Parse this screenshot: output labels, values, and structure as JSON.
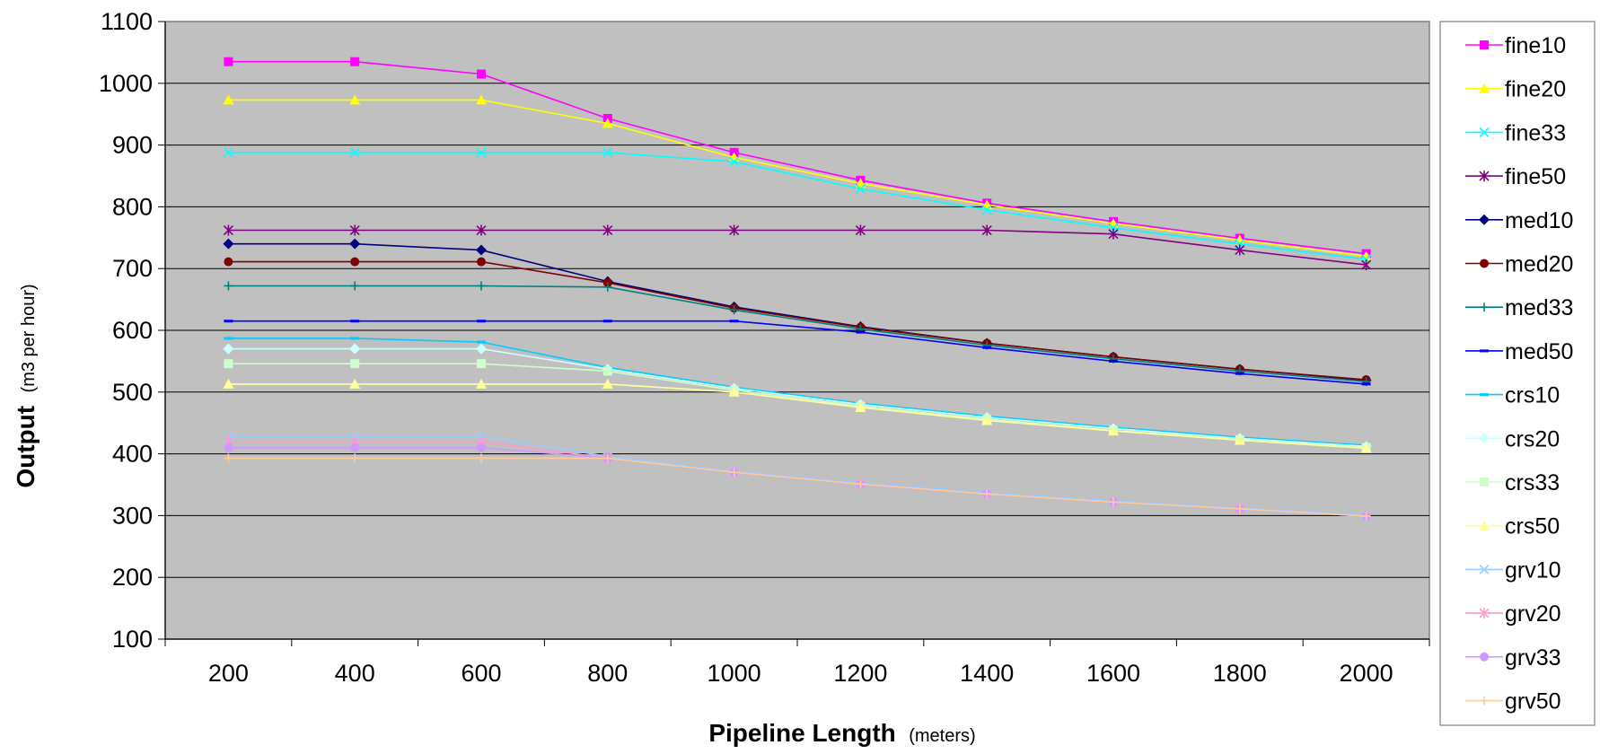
{
  "chart_data": {
    "type": "line",
    "xlabel": "Pipeline Length",
    "xlabel_unit": "(meters)",
    "ylabel": "Output",
    "ylabel_unit": "(m3 per hour)",
    "ylim": [
      100,
      1100
    ],
    "y_ticks": [
      100,
      200,
      300,
      400,
      500,
      600,
      700,
      800,
      900,
      1000,
      1100
    ],
    "categories": [
      "200",
      "400",
      "600",
      "800",
      "1000",
      "1200",
      "1400",
      "1600",
      "1800",
      "2000"
    ],
    "grid": "horizontal",
    "plot_background": "#c0c0c0",
    "legend_position": "right",
    "series": [
      {
        "name": "fine10",
        "color": "#ff00ff",
        "marker": "square",
        "values": [
          1035,
          1035,
          1015,
          943,
          888,
          843,
          806,
          776,
          749,
          724
        ]
      },
      {
        "name": "fine20",
        "color": "#ffff00",
        "marker": "triangle",
        "values": [
          973,
          973,
          973,
          935,
          880,
          838,
          803,
          773,
          746,
          720
        ]
      },
      {
        "name": "fine33",
        "color": "#00ffff",
        "marker": "x",
        "values": [
          888,
          888,
          888,
          888,
          873,
          829,
          795,
          766,
          740,
          715
        ]
      },
      {
        "name": "fine50",
        "color": "#800080",
        "marker": "star",
        "values": [
          762,
          762,
          762,
          762,
          762,
          762,
          762,
          756,
          730,
          706
        ]
      },
      {
        "name": "med10",
        "color": "#000080",
        "marker": "diamond",
        "values": [
          740,
          740,
          730,
          679,
          638,
          606,
          579,
          557,
          537,
          519
        ]
      },
      {
        "name": "med20",
        "color": "#800000",
        "marker": "circle",
        "values": [
          711,
          711,
          711,
          677,
          636,
          605,
          579,
          557,
          537,
          520
        ]
      },
      {
        "name": "med33",
        "color": "#008080",
        "marker": "plus",
        "values": [
          672,
          672,
          672,
          670,
          633,
          602,
          576,
          554,
          534,
          517
        ]
      },
      {
        "name": "med50",
        "color": "#0000ff",
        "marker": "dash",
        "values": [
          615,
          615,
          615,
          615,
          615,
          597,
          572,
          550,
          530,
          513
        ]
      },
      {
        "name": "crs10",
        "color": "#00ccff",
        "marker": "dash",
        "values": [
          587,
          587,
          581,
          540,
          508,
          482,
          461,
          443,
          427,
          414
        ]
      },
      {
        "name": "crs20",
        "color": "#ccffff",
        "marker": "diamond",
        "values": [
          570,
          570,
          570,
          537,
          506,
          480,
          459,
          441,
          425,
          412
        ]
      },
      {
        "name": "crs33",
        "color": "#ccffcc",
        "marker": "square",
        "values": [
          546,
          546,
          546,
          534,
          503,
          477,
          456,
          438,
          423,
          410
        ]
      },
      {
        "name": "crs50",
        "color": "#ffff99",
        "marker": "triangle",
        "values": [
          513,
          513,
          513,
          513,
          500,
          475,
          454,
          437,
          422,
          409
        ]
      },
      {
        "name": "grv10",
        "color": "#99ccff",
        "marker": "x",
        "values": [
          428,
          428,
          428,
          396,
          372,
          353,
          337,
          324,
          312,
          301
        ]
      },
      {
        "name": "grv20",
        "color": "#ff99cc",
        "marker": "star",
        "values": [
          420,
          420,
          420,
          393,
          370,
          351,
          335,
          322,
          311,
          299
        ]
      },
      {
        "name": "grv33",
        "color": "#cc99ff",
        "marker": "circle",
        "values": [
          410,
          410,
          410,
          393,
          370,
          351,
          335,
          322,
          311,
          299
        ]
      },
      {
        "name": "grv50",
        "color": "#ffcc99",
        "marker": "plus",
        "values": [
          393,
          393,
          393,
          393,
          370,
          351,
          335,
          322,
          311,
          299
        ]
      }
    ]
  }
}
